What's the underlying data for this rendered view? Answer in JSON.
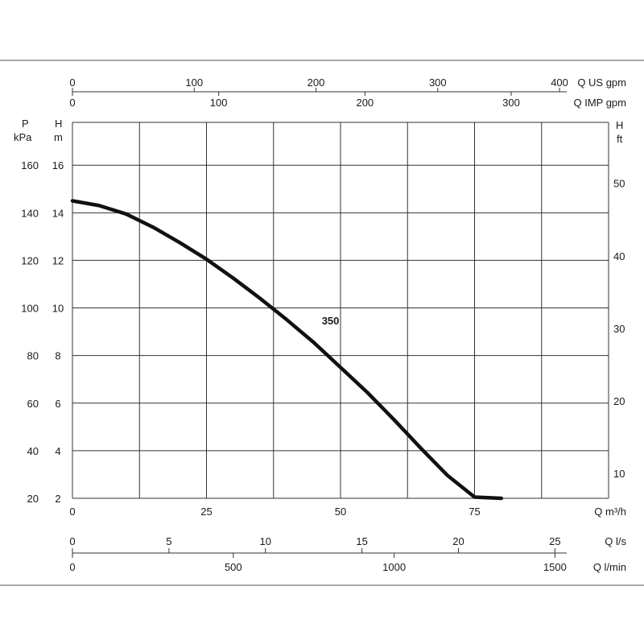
{
  "chart_data": {
    "type": "line",
    "xlabel": "Q m³/h",
    "xlim": [
      0,
      100
    ],
    "x_ticks": [
      0,
      25,
      50,
      75
    ],
    "x_gridlines": [
      0,
      12.5,
      25,
      37.5,
      50,
      62.5,
      75,
      87.5,
      100
    ],
    "ylabel": "H m",
    "ylim": [
      2,
      17.8
    ],
    "y_ticks": [
      2,
      4,
      6,
      8,
      10,
      12,
      14,
      16
    ],
    "ylabel_pressure": "P kPa",
    "pressure_ticks": [
      {
        "label": "20",
        "at_h": 2
      },
      {
        "label": "40",
        "at_h": 4
      },
      {
        "label": "60",
        "at_h": 6
      },
      {
        "label": "80",
        "at_h": 8
      },
      {
        "label": "100",
        "at_h": 10
      },
      {
        "label": "120",
        "at_h": 12
      },
      {
        "label": "140",
        "at_h": 14
      },
      {
        "label": "160",
        "at_h": 16
      }
    ],
    "ylabel_right": "H ft",
    "ft_ticks": [
      10,
      20,
      30,
      40,
      50
    ],
    "grid": true,
    "series": [
      {
        "name": "350",
        "x": [
          0,
          5,
          10,
          15,
          20,
          25,
          30,
          35,
          40,
          45,
          50,
          55,
          60,
          65,
          70,
          75,
          80
        ],
        "y": [
          14.5,
          14.3,
          13.95,
          13.4,
          12.75,
          12.05,
          11.25,
          10.4,
          9.5,
          8.55,
          7.5,
          6.45,
          5.3,
          4.1,
          2.95,
          2.05,
          2.0
        ]
      }
    ],
    "curve_label": {
      "text": "350",
      "x": 46.5,
      "y": 9.3
    },
    "top_axes": [
      {
        "unit": "Q US gpm",
        "max": 400,
        "ticks": [
          0,
          100,
          200,
          300,
          400
        ]
      },
      {
        "unit": "Q IMP gpm",
        "max": 300,
        "ticks": [
          0,
          100,
          200,
          300
        ]
      }
    ],
    "bottom_axes": [
      {
        "unit": "Q l/s",
        "ticks": [
          0,
          5,
          10,
          15,
          20,
          25
        ]
      },
      {
        "unit": "Q l/min",
        "ticks": [
          0,
          500,
          1000,
          1500
        ]
      }
    ],
    "colors": {
      "curve": "#111111",
      "grid": "#333333",
      "frame": "#555555",
      "text": "#1a1a1a"
    }
  }
}
